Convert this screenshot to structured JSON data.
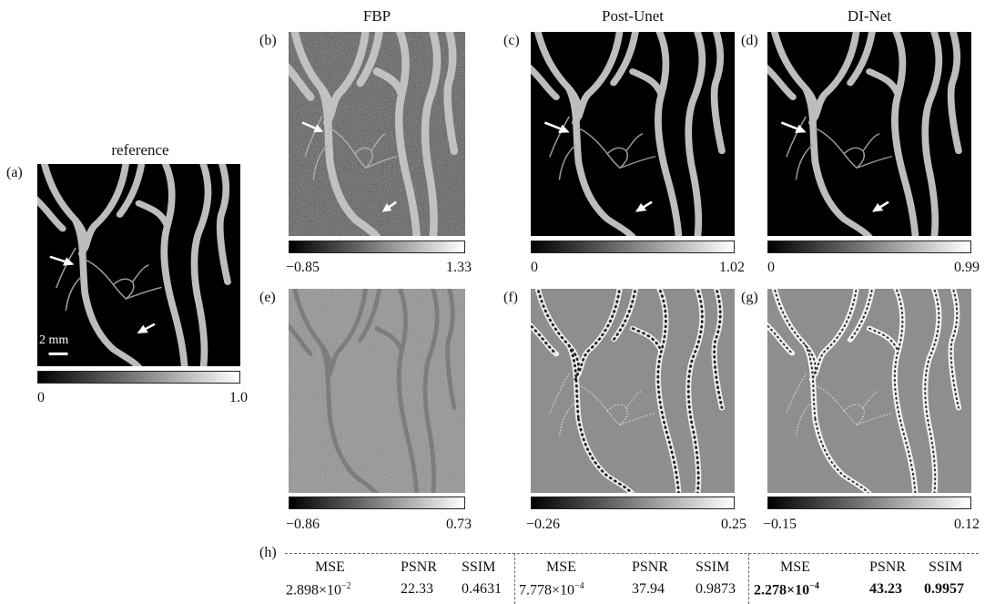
{
  "columns": {
    "reference": "reference",
    "fbp": "FBP",
    "post_unet": "Post-Unet",
    "di_net": "DI-Net"
  },
  "panel_labels": {
    "a": "(a)",
    "b": "(b)",
    "c": "(c)",
    "d": "(d)",
    "e": "(e)",
    "f": "(f)",
    "g": "(g)",
    "h": "(h)"
  },
  "scale_bar": "2 mm",
  "colorbars": {
    "a": {
      "min": "0",
      "max": "1.0"
    },
    "b": {
      "min": "−0.85",
      "max": "1.33"
    },
    "c": {
      "min": "0",
      "max": "1.02"
    },
    "d": {
      "min": "0",
      "max": "0.99"
    },
    "e": {
      "min": "−0.86",
      "max": "0.73"
    },
    "f": {
      "min": "−0.26",
      "max": "0.25"
    },
    "g": {
      "min": "−0.15",
      "max": "0.12"
    }
  },
  "metrics": {
    "headers": [
      "MSE",
      "PSNR",
      "SSIM"
    ],
    "fbp": {
      "mse_base": "2.898×10",
      "mse_exp": "−2",
      "psnr": "22.33",
      "ssim": "0.4631"
    },
    "post_unet": {
      "mse_base": "7.778×10",
      "mse_exp": "−4",
      "psnr": "37.94",
      "ssim": "0.9873"
    },
    "di_net": {
      "mse_base": "2.278×10",
      "mse_exp": "−4",
      "psnr": "43.23",
      "ssim": "0.9957"
    }
  },
  "colors": {
    "background": "#000000",
    "vessel": "#c8c8c8",
    "error_bg": "#8a8a8a",
    "arrow": "#ffffff"
  }
}
